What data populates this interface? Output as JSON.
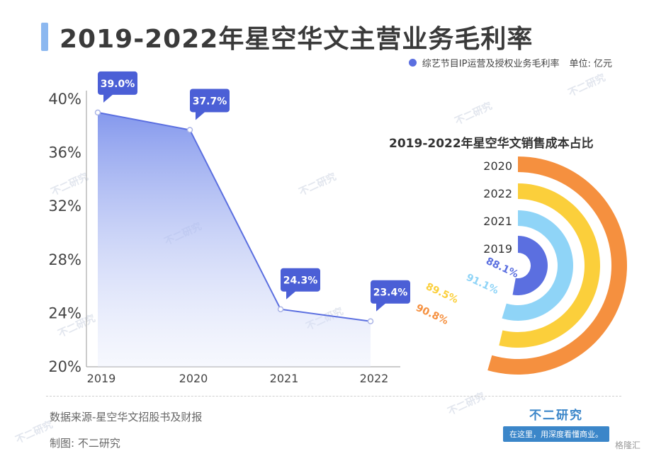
{
  "header": {
    "title": "2019-2022年星空华文主营业务毛利率",
    "legend_label": "综艺节目IP运营及授权业务毛利率",
    "unit_label": "单位: 亿元",
    "accent_color": "#5b6fe0"
  },
  "chart_data": [
    {
      "type": "area",
      "categories": [
        "2019",
        "2020",
        "2021",
        "2022"
      ],
      "series": [
        {
          "name": "综艺节目IP运营及授权业务毛利率",
          "values": [
            39.0,
            37.7,
            24.3,
            23.4
          ]
        }
      ],
      "data_labels": [
        "39.0%",
        "37.7%",
        "24.3%",
        "23.4%"
      ],
      "ylim": [
        20,
        40
      ],
      "yticks": [
        "20%",
        "24%",
        "28%",
        "32%",
        "36%",
        "40%"
      ],
      "colors": {
        "line": "#5b6fe0",
        "area_top": "#7e93ec",
        "label_bg": "#4b5fd6"
      }
    },
    {
      "type": "radial-bar",
      "title": "2019-2022年星空华文销售成本占比",
      "categories": [
        "2020",
        "2022",
        "2021",
        "2019"
      ],
      "values": [
        90.8,
        89.5,
        91.1,
        88.1
      ],
      "data_labels": [
        "90.8%",
        "89.5%",
        "91.1%",
        "88.1%"
      ],
      "colors": [
        "#f5903f",
        "#fbcf3b",
        "#8fd4f7",
        "#5b6fe0"
      ]
    }
  ],
  "footer": {
    "source": "数据来源-星空华文招股书及财报",
    "made_by": "制图:  不二研究",
    "brand_name": "不二研究",
    "brand_slogan": "在这里，用深度看懂商业。",
    "watermark": "不二研究",
    "gelonghui": "格隆汇"
  }
}
